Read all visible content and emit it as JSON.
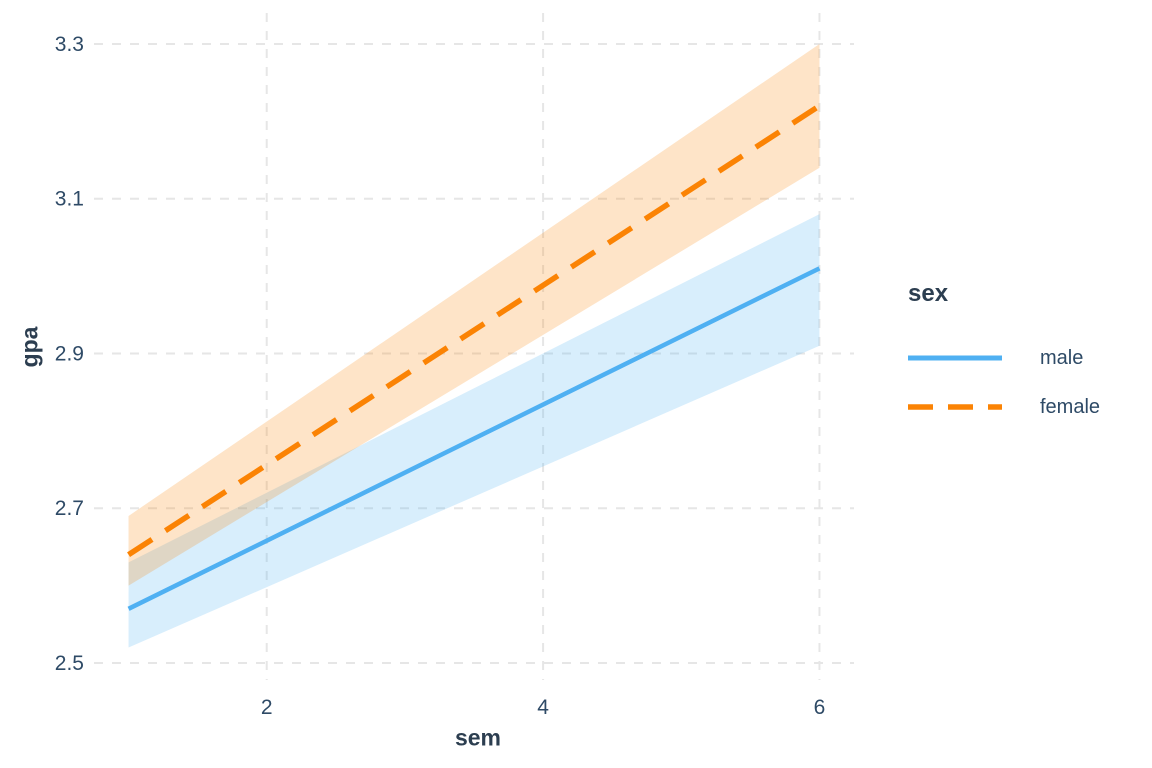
{
  "chart_data": {
    "type": "line",
    "title": "",
    "xlabel": "sem",
    "ylabel": "gpa",
    "xlim": [
      0.75,
      6.25
    ],
    "ylim": [
      2.478,
      3.34
    ],
    "x_ticks": [
      2,
      4,
      6
    ],
    "x_tick_labels": [
      "2",
      "4",
      "6"
    ],
    "y_ticks": [
      2.5,
      2.7,
      2.9,
      3.1,
      3.3
    ],
    "y_tick_labels": [
      "2.5",
      "2.7",
      "2.9",
      "3.1",
      "3.3"
    ],
    "grid": "dashed",
    "legend": {
      "title": "sex",
      "position": "right"
    },
    "series": [
      {
        "name": "male",
        "line_style": "solid",
        "color": "#4FB0F2",
        "ribbon_color": "rgba(79,176,242,0.22)",
        "x": [
          1,
          6
        ],
        "y": [
          2.57,
          3.01
        ],
        "ci_upper": [
          2.63,
          3.08
        ],
        "ci_lower": [
          2.52,
          2.91
        ]
      },
      {
        "name": "female",
        "line_style": "dashed",
        "color": "#FB8304",
        "ribbon_color": "rgba(251,131,4,0.22)",
        "x": [
          1,
          6
        ],
        "y": [
          2.64,
          3.22
        ],
        "ci_upper": [
          2.69,
          3.3
        ],
        "ci_lower": [
          2.6,
          3.14
        ]
      }
    ]
  },
  "colors": {
    "text": "#2E4A66",
    "title": "#2C3E50",
    "grid": "#E6E6E6",
    "background": "#FFFFFF",
    "male": "#4FB0F2",
    "female": "#FB8304"
  }
}
